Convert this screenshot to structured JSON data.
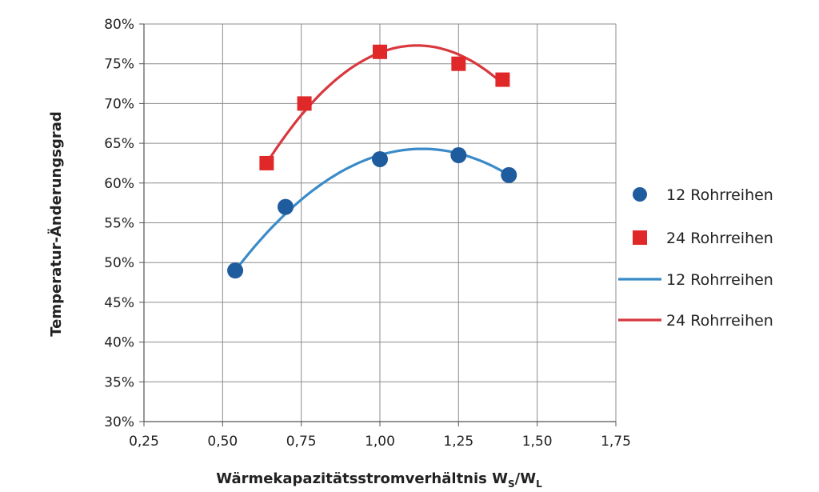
{
  "chart_data": {
    "type": "scatter",
    "xlabel_main": "Wärmekapazitätsstromverhältnis W",
    "xlabel_sub1": "S",
    "xlabel_slash": "/W",
    "xlabel_sub2": "L",
    "ylabel": "Temperatur-Änderungsgrad",
    "xlim": [
      0.25,
      1.75
    ],
    "ylim": [
      0.3,
      0.8
    ],
    "x_ticks": [
      "0,25",
      "0,50",
      "0,75",
      "1,00",
      "1,25",
      "1,50",
      "1,75"
    ],
    "y_ticks": [
      "30%",
      "35%",
      "40%",
      "45%",
      "50%",
      "55%",
      "60%",
      "65%",
      "70%",
      "75%",
      "80%"
    ],
    "grid": true,
    "legend_position": "right",
    "series": [
      {
        "name": "12 Rohrreihen",
        "kind": "markers",
        "marker": "circle",
        "color": "#1F5C9E",
        "x": [
          0.54,
          0.7,
          1.0,
          1.25,
          1.41
        ],
        "y": [
          0.49,
          0.57,
          0.63,
          0.635,
          0.61
        ]
      },
      {
        "name": "24 Rohrreihen",
        "kind": "markers",
        "marker": "square",
        "color": "#E02828",
        "x": [
          0.64,
          0.76,
          1.0,
          1.25,
          1.39
        ],
        "y": [
          0.625,
          0.7,
          0.765,
          0.75,
          0.73
        ]
      },
      {
        "name": "12 Rohrreihen",
        "kind": "trendline",
        "color": "#3A8BC8",
        "fit": "polynomial-2",
        "x_range": [
          0.54,
          1.41
        ],
        "fit_points": [
          [
            0.54,
            0.49
          ],
          [
            1.13,
            0.643
          ],
          [
            1.41,
            0.61
          ]
        ]
      },
      {
        "name": "24 Rohrreihen",
        "kind": "trendline",
        "color": "#D8383E",
        "fit": "polynomial-2",
        "x_range": [
          0.64,
          1.39
        ],
        "fit_points": [
          [
            0.64,
            0.625
          ],
          [
            1.12,
            0.773
          ],
          [
            1.39,
            0.725
          ]
        ]
      }
    ]
  }
}
